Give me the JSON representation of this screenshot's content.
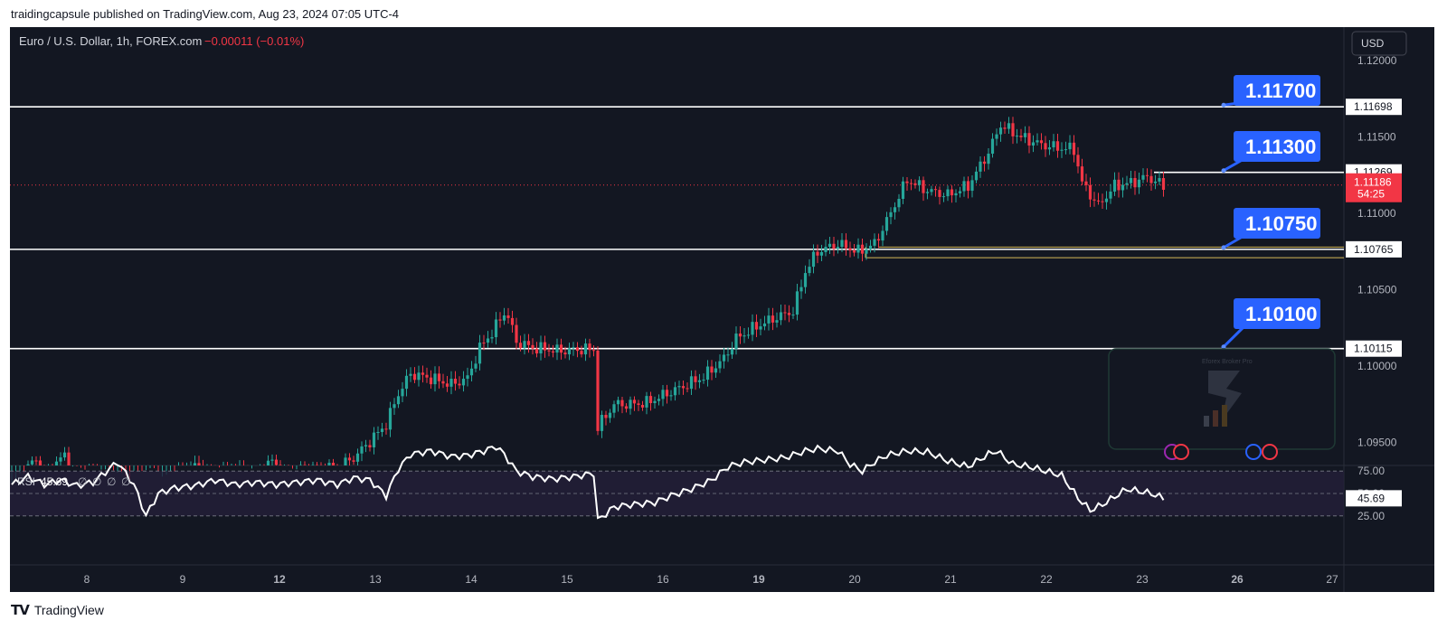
{
  "header": {
    "published_text": "traidingcapsule published on TradingView.com, Aug 23, 2024 07:05 UTC-4"
  },
  "legend": {
    "symbol": "Euro / U.S. Dollar, 1h, FOREX.com",
    "change": "−0.00011 (−0.01%)"
  },
  "currency_button": "USD",
  "price_axis": {
    "ticks": [
      "1.12000",
      "1.11500",
      "1.11000",
      "1.10500",
      "1.10000",
      "1.09500"
    ],
    "labels": [
      {
        "text": "1.11698",
        "price": 1.11698,
        "kind": "line"
      },
      {
        "text": "1.11269",
        "price": 1.11269,
        "kind": "line"
      },
      {
        "text": "1.10765",
        "price": 1.10765,
        "kind": "line"
      },
      {
        "text": "1.10115",
        "price": 1.10115,
        "kind": "line"
      }
    ],
    "current": {
      "price_text": "1.11186",
      "timer_text": "54:25",
      "price": 1.11186
    }
  },
  "callouts": [
    {
      "text": "1.11700",
      "level": 1.11698
    },
    {
      "text": "1.11300",
      "level": 1.11269
    },
    {
      "text": "1.10750",
      "level": 1.10765
    },
    {
      "text": "1.10100",
      "level": 1.10115
    }
  ],
  "time_axis": [
    "8",
    "9",
    "12",
    "13",
    "14",
    "15",
    "16",
    "19",
    "20",
    "21",
    "22",
    "23",
    "26",
    "27"
  ],
  "rsi": {
    "label": "RSI",
    "value": "45.69",
    "placeholders": [
      "∅",
      "∅",
      "∅",
      "∅"
    ],
    "axis_labels": [
      "75.00",
      "50.00",
      "25.00"
    ],
    "current_label": "45.69"
  },
  "watermark": {
    "text": "Eforex Broker Pro"
  },
  "colors": {
    "background": "#131722",
    "up": "#26a69a",
    "down": "#f23645",
    "callout": "#2962ff",
    "level_line": "#ffffff",
    "rsi_line": "#ffffff",
    "zone": "#d4b857"
  },
  "chart_data": {
    "type": "candlestick",
    "title": "Euro / U.S. Dollar, 1h, FOREX.com",
    "ylim": [
      1.0935,
      1.1222
    ],
    "close_path": [
      [
        0,
        1.092
      ],
      [
        6,
        1.094
      ],
      [
        8,
        1.0928
      ],
      [
        13,
        1.0942
      ],
      [
        15,
        1.0928
      ],
      [
        20,
        1.093
      ],
      [
        28,
        1.0921
      ],
      [
        33,
        1.0928
      ],
      [
        37,
        1.0921
      ],
      [
        44,
        1.0935
      ],
      [
        50,
        1.0928
      ],
      [
        54,
        1.0932
      ],
      [
        60,
        1.0929
      ],
      [
        64,
        1.0938
      ],
      [
        67,
        1.0929
      ],
      [
        73,
        1.0934
      ],
      [
        80,
        1.0933
      ],
      [
        84,
        1.094
      ],
      [
        87,
        1.0948
      ],
      [
        92,
        1.0962
      ],
      [
        95,
        1.0982
      ],
      [
        98,
        1.0995
      ],
      [
        103,
        1.0992
      ],
      [
        108,
        1.0988
      ],
      [
        112,
        1.0992
      ],
      [
        115,
        1.1012
      ],
      [
        118,
        1.1022
      ],
      [
        121,
        1.1035
      ],
      [
        122,
        1.1032
      ],
      [
        124,
        1.1016
      ],
      [
        128,
        1.1012
      ],
      [
        135,
        1.101
      ],
      [
        140,
        1.1011
      ],
      [
        143,
        1.1011
      ],
      [
        144,
        1.096
      ],
      [
        148,
        1.0975
      ],
      [
        152,
        1.0975
      ],
      [
        156,
        1.0976
      ],
      [
        161,
        1.0982
      ],
      [
        166,
        1.0988
      ],
      [
        170,
        1.0993
      ],
      [
        175,
        1.1005
      ],
      [
        178,
        1.1018
      ],
      [
        183,
        1.1026
      ],
      [
        188,
        1.1032
      ],
      [
        192,
        1.1036
      ],
      [
        195,
        1.1062
      ],
      [
        198,
        1.1075
      ],
      [
        203,
        1.108
      ],
      [
        208,
        1.1075
      ],
      [
        212,
        1.108
      ],
      [
        215,
        1.1095
      ],
      [
        220,
        1.1122
      ],
      [
        225,
        1.1115
      ],
      [
        230,
        1.1112
      ],
      [
        235,
        1.1118
      ],
      [
        240,
        1.114
      ],
      [
        243,
        1.1158
      ],
      [
        248,
        1.115
      ],
      [
        253,
        1.1145
      ],
      [
        257,
        1.1143
      ],
      [
        261,
        1.1142
      ],
      [
        263,
        1.112
      ],
      [
        267,
        1.1105
      ],
      [
        271,
        1.1118
      ],
      [
        275,
        1.112
      ],
      [
        279,
        1.1124
      ],
      [
        283,
        1.1118
      ]
    ],
    "rsi_path": [
      [
        0,
        58
      ],
      [
        4,
        65
      ],
      [
        8,
        58
      ],
      [
        12,
        62
      ],
      [
        16,
        57
      ],
      [
        20,
        60
      ],
      [
        26,
        78
      ],
      [
        30,
        58
      ],
      [
        33,
        30
      ],
      [
        36,
        50
      ],
      [
        40,
        55
      ],
      [
        45,
        57
      ],
      [
        50,
        62
      ],
      [
        55,
        58
      ],
      [
        60,
        60
      ],
      [
        65,
        58
      ],
      [
        70,
        60
      ],
      [
        75,
        62
      ],
      [
        80,
        58
      ],
      [
        84,
        64
      ],
      [
        88,
        62
      ],
      [
        92,
        48
      ],
      [
        95,
        72
      ],
      [
        98,
        85
      ],
      [
        103,
        88
      ],
      [
        108,
        83
      ],
      [
        112,
        84
      ],
      [
        116,
        88
      ],
      [
        119,
        92
      ],
      [
        121,
        85
      ],
      [
        124,
        70
      ],
      [
        128,
        65
      ],
      [
        133,
        63
      ],
      [
        138,
        65
      ],
      [
        143,
        68
      ],
      [
        144,
        26
      ],
      [
        148,
        38
      ],
      [
        152,
        40
      ],
      [
        158,
        42
      ],
      [
        162,
        48
      ],
      [
        167,
        54
      ],
      [
        172,
        62
      ],
      [
        176,
        74
      ],
      [
        180,
        78
      ],
      [
        185,
        80
      ],
      [
        190,
        82
      ],
      [
        195,
        88
      ],
      [
        198,
        90
      ],
      [
        203,
        88
      ],
      [
        206,
        76
      ],
      [
        209,
        70
      ],
      [
        212,
        78
      ],
      [
        215,
        84
      ],
      [
        220,
        88
      ],
      [
        225,
        87
      ],
      [
        230,
        79
      ],
      [
        235,
        74
      ],
      [
        240,
        85
      ],
      [
        242,
        88
      ],
      [
        246,
        76
      ],
      [
        250,
        74
      ],
      [
        254,
        70
      ],
      [
        258,
        66
      ],
      [
        262,
        46
      ],
      [
        265,
        35
      ],
      [
        268,
        40
      ],
      [
        271,
        47
      ],
      [
        274,
        54
      ],
      [
        277,
        52
      ],
      [
        280,
        50
      ],
      [
        283,
        45.69
      ]
    ]
  }
}
